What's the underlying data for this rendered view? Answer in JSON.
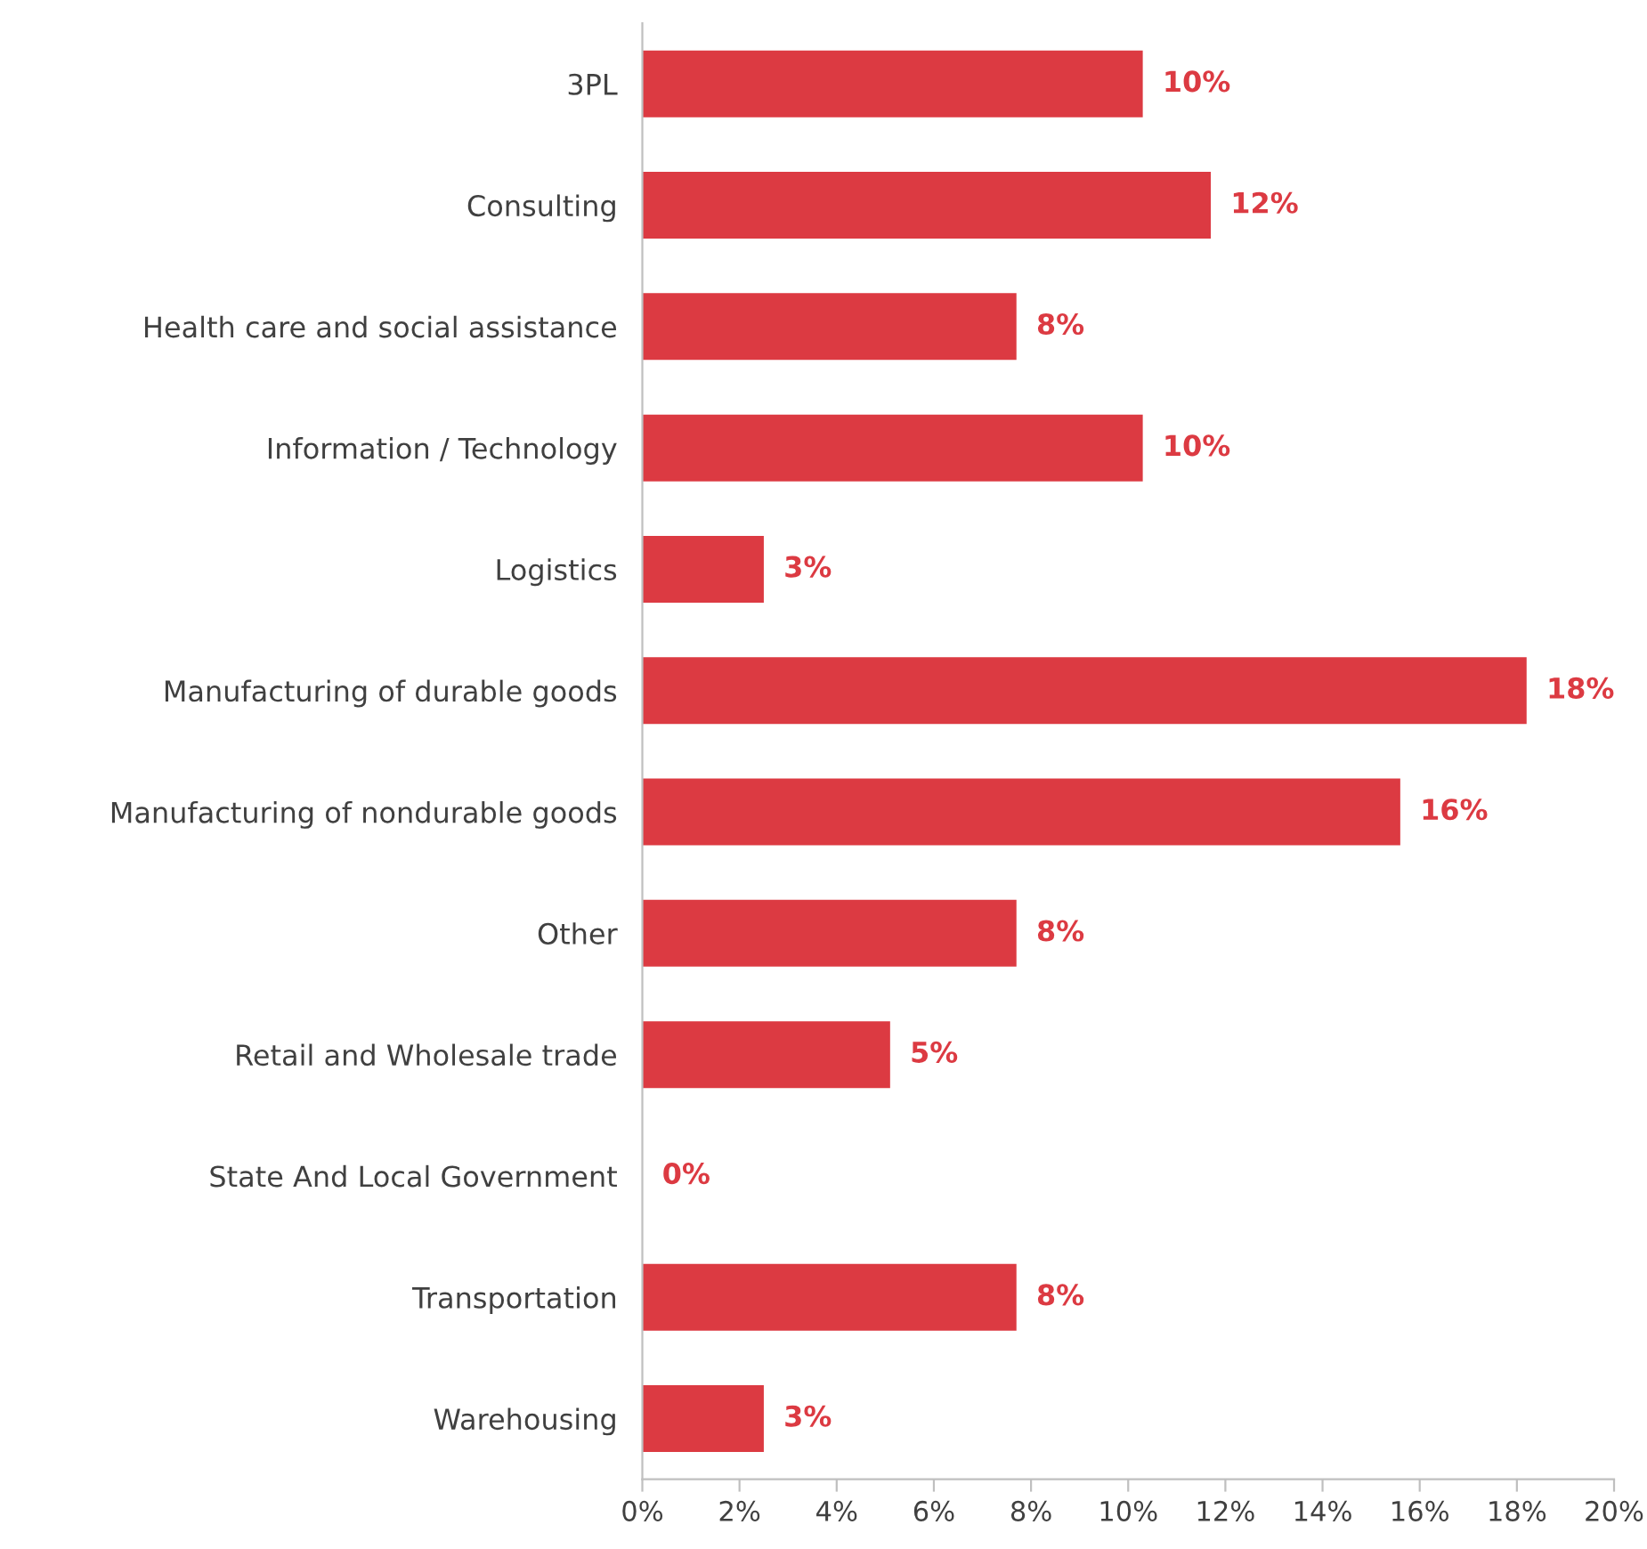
{
  "chart_data": {
    "type": "bar",
    "orientation": "horizontal",
    "categories": [
      "3PL",
      "Consulting",
      "Health care and social assistance",
      "Information / Technology",
      "Logistics",
      "Manufacturing of durable goods",
      "Manufacturing of nondurable goods",
      "Other",
      "Retail and Wholesale trade",
      "State And Local Government",
      "Transportation",
      "Warehousing"
    ],
    "values": [
      10.3,
      11.7,
      7.7,
      10.3,
      2.5,
      18.2,
      15.6,
      7.7,
      5.1,
      0,
      7.7,
      2.5
    ],
    "value_labels": [
      "10%",
      "12%",
      "8%",
      "10%",
      "3%",
      "18%",
      "16%",
      "8%",
      "5%",
      "0%",
      "8%",
      "3%"
    ],
    "color": "#dc3a42",
    "xlim": [
      0,
      20
    ],
    "xticks": [
      {
        "value": 0,
        "label": "0%"
      },
      {
        "value": 2,
        "label": "2%"
      },
      {
        "value": 4,
        "label": "4%"
      },
      {
        "value": 6,
        "label": "6%"
      },
      {
        "value": 8,
        "label": "8%"
      },
      {
        "value": 10,
        "label": "10%"
      },
      {
        "value": 12,
        "label": "12%"
      },
      {
        "value": 14,
        "label": "14%"
      },
      {
        "value": 16,
        "label": "16%"
      },
      {
        "value": 18,
        "label": "18%"
      },
      {
        "value": 20,
        "label": "20%"
      }
    ],
    "grid": false,
    "legend": false
  }
}
